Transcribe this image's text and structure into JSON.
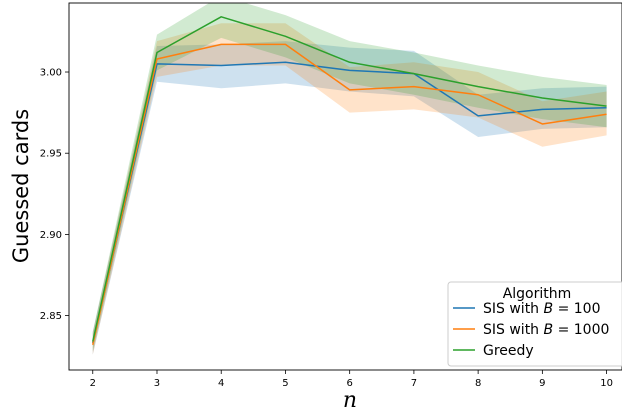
{
  "chart_data": {
    "type": "line",
    "xlabel": "n",
    "ylabel": "Guessed cards",
    "xlim": [
      1.63,
      10.24
    ],
    "ylim": [
      2.8165,
      3.0425
    ],
    "xticks": [
      2,
      3,
      4,
      5,
      6,
      7,
      8,
      9,
      10
    ],
    "yticks": [
      2.85,
      2.9,
      2.95,
      3.0
    ],
    "ytick_labels": [
      "2.85",
      "2.90",
      "2.95",
      "3.00"
    ],
    "grid": false,
    "legend": {
      "title": "Algorithm",
      "placement": "bottom-right",
      "entries": [
        {
          "prefix": "SIS with ",
          "var": "B",
          "suffix": " = 100"
        },
        {
          "prefix": "SIS with ",
          "var": "B",
          "suffix": " = 1000"
        },
        {
          "prefix": "Greedy",
          "var": "",
          "suffix": ""
        }
      ]
    },
    "x": [
      2,
      3,
      4,
      5,
      6,
      7,
      8,
      9,
      10
    ],
    "series": [
      {
        "name": "SIS with B = 100",
        "color": "#1f77b4",
        "values": [
          2.833,
          3.005,
          3.004,
          3.006,
          3.001,
          2.999,
          2.973,
          2.977,
          2.978
        ],
        "lower": [
          2.826,
          2.994,
          2.99,
          2.993,
          2.988,
          2.985,
          2.96,
          2.965,
          2.966
        ],
        "upper": [
          2.84,
          3.016,
          3.017,
          3.019,
          3.015,
          3.013,
          2.986,
          2.99,
          2.991
        ]
      },
      {
        "name": "SIS with B = 1000",
        "color": "#ff7f0e",
        "values": [
          2.832,
          3.008,
          3.017,
          3.017,
          2.989,
          2.991,
          2.986,
          2.968,
          2.974
        ],
        "lower": [
          2.826,
          2.997,
          3.004,
          3.004,
          2.975,
          2.977,
          2.972,
          2.954,
          2.961
        ],
        "upper": [
          2.839,
          3.019,
          3.03,
          3.03,
          3.003,
          3.006,
          3.0,
          2.982,
          2.988
        ]
      },
      {
        "name": "Greedy",
        "color": "#2ca02c",
        "values": [
          2.834,
          3.012,
          3.034,
          3.022,
          3.006,
          2.999,
          2.991,
          2.984,
          2.979
        ],
        "lower": [
          2.828,
          3.001,
          3.021,
          3.009,
          2.993,
          2.986,
          2.978,
          2.971,
          2.966
        ],
        "upper": [
          2.84,
          3.023,
          3.047,
          3.035,
          3.019,
          3.012,
          3.004,
          2.997,
          2.992
        ]
      }
    ]
  }
}
